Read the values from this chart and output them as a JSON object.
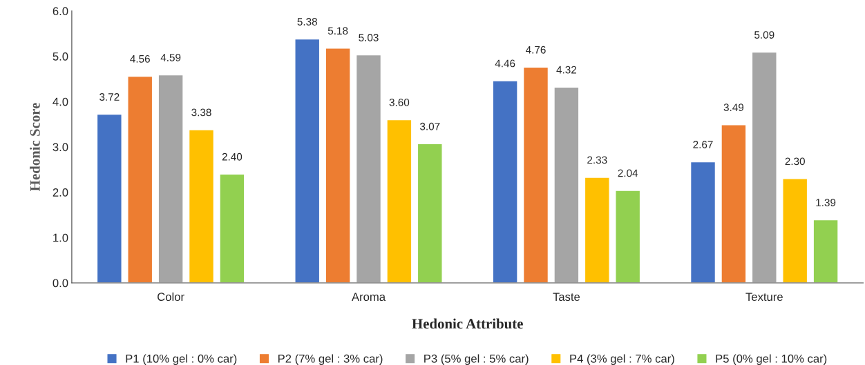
{
  "chart_data": {
    "type": "bar",
    "xlabel": "Hedonic Attribute",
    "ylabel": "Hedonic Score",
    "categories": [
      "Color",
      "Aroma",
      "Taste",
      "Texture"
    ],
    "series": [
      {
        "name": "P1 (10% gel : 0% car)",
        "color": "#4472c4",
        "values": [
          3.72,
          5.38,
          4.46,
          2.67
        ],
        "value_labels": [
          "3.72",
          "5.38",
          "4.46",
          "2.67"
        ]
      },
      {
        "name": "P2 (7% gel : 3% car)",
        "color": "#ed7d31",
        "values": [
          4.56,
          5.18,
          4.76,
          3.49
        ],
        "value_labels": [
          "4.56",
          "5.18",
          "4.76",
          "3.49"
        ]
      },
      {
        "name": "P3 (5% gel : 5% car)",
        "color": "#a5a5a5",
        "values": [
          4.59,
          5.03,
          4.32,
          5.09
        ],
        "value_labels": [
          "4.59",
          "5.03",
          "4.32",
          "5.09"
        ]
      },
      {
        "name": "P4 (3% gel : 7% car)",
        "color": "#ffc000",
        "values": [
          3.38,
          3.6,
          2.33,
          2.3
        ],
        "value_labels": [
          "3.38",
          "3.60",
          "2.33",
          "2.30"
        ]
      },
      {
        "name": "P5 (0% gel : 10% car)",
        "color": "#92d050",
        "values": [
          2.4,
          3.07,
          2.04,
          1.39
        ],
        "value_labels": [
          "2.40",
          "3.07",
          "2.04",
          "1.39"
        ]
      }
    ],
    "ylim": [
      0,
      6
    ],
    "yticks": [
      {
        "value": 0,
        "label": "0.0"
      },
      {
        "value": 1,
        "label": "1.0"
      },
      {
        "value": 2,
        "label": "2.0"
      },
      {
        "value": 3,
        "label": "3.0"
      },
      {
        "value": 4,
        "label": "4.0"
      },
      {
        "value": 5,
        "label": "5.0"
      },
      {
        "value": 6,
        "label": "6.0"
      }
    ],
    "grid": false,
    "legend": "bottom"
  }
}
